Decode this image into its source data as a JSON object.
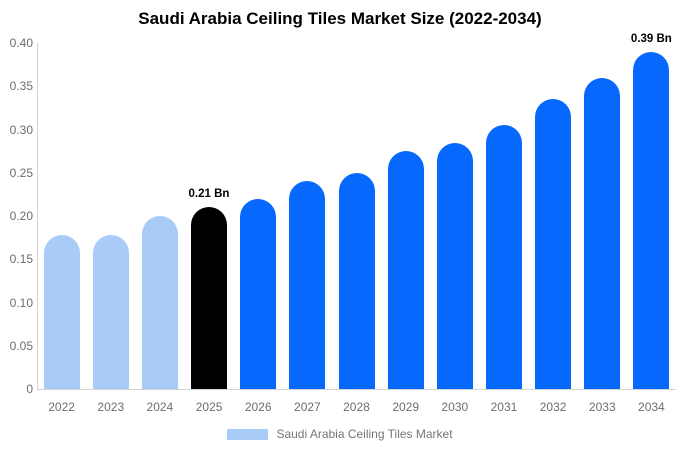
{
  "title": "Saudi Arabia Ceiling Tiles Market Size (2022-2034)",
  "legend": {
    "label": "Saudi Arabia Ceiling Tiles Market"
  },
  "colors": {
    "historical_bar": "#a8ccf7",
    "base_year_bar": "#000000",
    "forecast_bar": "#0768fd",
    "axis_line": "#d4d4d4",
    "axis_text": "#6e6e6e",
    "legend_text": "#757575",
    "annotation_text": "#000000",
    "background": "#ffffff"
  },
  "chart_data": {
    "type": "bar",
    "title": "Saudi Arabia Ceiling Tiles Market Size (2022-2034)",
    "categories": [
      "2022",
      "2023",
      "2024",
      "2025",
      "2026",
      "2027",
      "2028",
      "2029",
      "2030",
      "2031",
      "2032",
      "2033",
      "2034"
    ],
    "values": [
      0.178,
      0.178,
      0.2,
      0.21,
      0.22,
      0.24,
      0.25,
      0.275,
      0.285,
      0.305,
      0.335,
      0.36,
      0.39
    ],
    "bar_roles": [
      "historical",
      "historical",
      "historical",
      "base_year",
      "forecast",
      "forecast",
      "forecast",
      "forecast",
      "forecast",
      "forecast",
      "forecast",
      "forecast",
      "forecast"
    ],
    "value_suffix": "Bn",
    "xlabel": "",
    "ylabel": "",
    "ylim": [
      0,
      0.4
    ],
    "y_ticks": [
      "0",
      "0.05",
      "0.10",
      "0.15",
      "0.20",
      "0.25",
      "0.30",
      "0.35",
      "0.40"
    ],
    "grid": false,
    "legend_entries": [
      "Saudi Arabia Ceiling Tiles Market"
    ],
    "legend_position": "bottom",
    "annotations": [
      {
        "category": "2025",
        "text": "0.21 Bn"
      },
      {
        "category": "2034",
        "text": "0.39 Bn"
      }
    ]
  }
}
